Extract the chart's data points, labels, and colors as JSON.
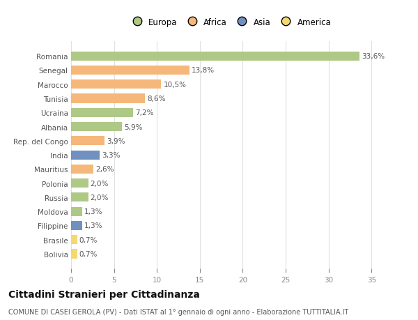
{
  "countries": [
    "Romania",
    "Senegal",
    "Marocco",
    "Tunisia",
    "Ucraina",
    "Albania",
    "Rep. del Congo",
    "India",
    "Mauritius",
    "Polonia",
    "Russia",
    "Moldova",
    "Filippine",
    "Brasile",
    "Bolivia"
  ],
  "values": [
    33.6,
    13.8,
    10.5,
    8.6,
    7.2,
    5.9,
    3.9,
    3.3,
    2.6,
    2.0,
    2.0,
    1.3,
    1.3,
    0.7,
    0.7
  ],
  "labels": [
    "33,6%",
    "13,8%",
    "10,5%",
    "8,6%",
    "7,2%",
    "5,9%",
    "3,9%",
    "3,3%",
    "2,6%",
    "2,0%",
    "2,0%",
    "1,3%",
    "1,3%",
    "0,7%",
    "0,7%"
  ],
  "colors": [
    "#aec986",
    "#f5b87a",
    "#f5b87a",
    "#f5b87a",
    "#aec986",
    "#aec986",
    "#f5b87a",
    "#7090c0",
    "#f5b87a",
    "#aec986",
    "#aec986",
    "#aec986",
    "#7090c0",
    "#f5d870",
    "#f5d870"
  ],
  "legend_labels": [
    "Europa",
    "Africa",
    "Asia",
    "America"
  ],
  "legend_colors": [
    "#aec986",
    "#f5b87a",
    "#7090c0",
    "#f5d870"
  ],
  "title": "Cittadini Stranieri per Cittadinanza",
  "subtitle": "COMUNE DI CASEI GEROLA (PV) - Dati ISTAT al 1° gennaio di ogni anno - Elaborazione TUTTITALIA.IT",
  "xlim": [
    0,
    37
  ],
  "xticks": [
    0,
    5,
    10,
    15,
    20,
    25,
    30,
    35
  ],
  "bg_color": "#ffffff",
  "plot_bg_color": "#ffffff",
  "grid_color": "#e0e0e0",
  "bar_height": 0.65,
  "label_fontsize": 7.5,
  "tick_fontsize": 7.5,
  "legend_fontsize": 8.5,
  "title_fontsize": 10,
  "subtitle_fontsize": 7.0
}
